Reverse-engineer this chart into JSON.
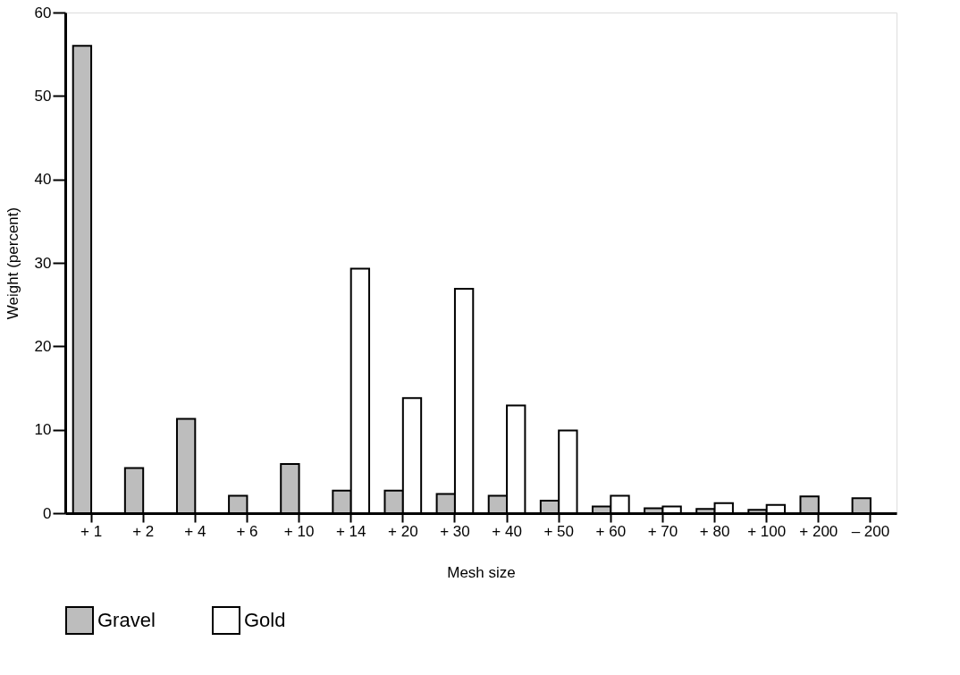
{
  "chart_data": {
    "type": "bar",
    "xlabel": "Mesh size",
    "ylabel": "Weight (percent)",
    "categories": [
      "+ 1",
      "+ 2",
      "+ 4",
      "+ 6",
      "+ 10",
      "+ 14",
      "+ 20",
      "+ 30",
      "+ 40",
      "+ 50",
      "+ 60",
      "+ 70",
      "+ 80",
      "+ 100",
      "+ 200",
      "– 200"
    ],
    "series": [
      {
        "name": "Gravel",
        "color": "#bdbdbd",
        "values": [
          56,
          5.4,
          11.3,
          2.1,
          5.9,
          2.7,
          2.7,
          2.3,
          2.1,
          1.5,
          0.8,
          0.6,
          0.5,
          0.4,
          2.0,
          1.8
        ]
      },
      {
        "name": "Gold",
        "color": "#ffffff",
        "values": [
          null,
          null,
          null,
          null,
          null,
          29.3,
          13.8,
          26.9,
          12.9,
          9.9,
          2.1,
          0.8,
          1.2,
          1.0,
          null,
          null
        ]
      }
    ],
    "ylim": [
      0,
      60
    ],
    "yticks": [
      0,
      10,
      20,
      30,
      40,
      50,
      60
    ],
    "grid": false,
    "legend": "bottom"
  }
}
